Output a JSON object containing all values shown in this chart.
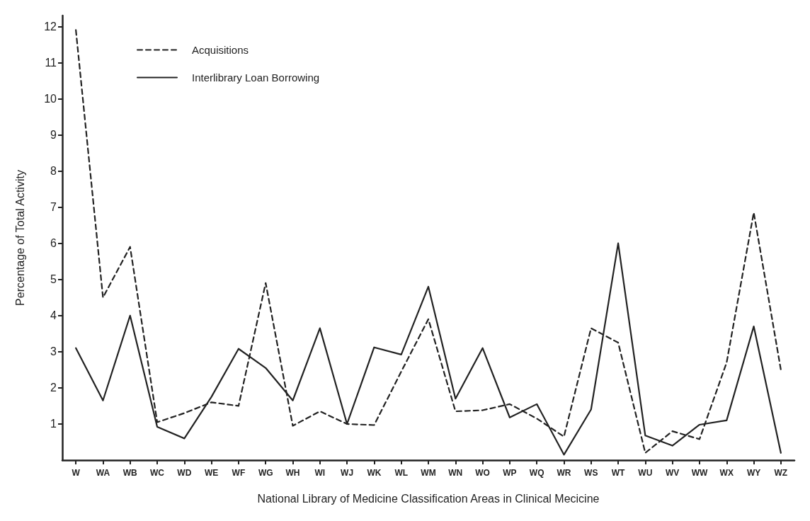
{
  "chart_data": {
    "type": "line",
    "xlabel": "National Library of Medicine Classification Areas in Clinical Mecicine",
    "ylabel": "Percentage of Total Activity",
    "categories": [
      "W",
      "WA",
      "WB",
      "WC",
      "WD",
      "WE",
      "WF",
      "WG",
      "WH",
      "WI",
      "WJ",
      "WK",
      "WL",
      "WM",
      "WN",
      "WO",
      "WP",
      "WQ",
      "WR",
      "WS",
      "WT",
      "WU",
      "WV",
      "WW",
      "WX",
      "WY",
      "WZ"
    ],
    "series": [
      {
        "name": "Acquisitions",
        "color": "#222222",
        "line_style": "dashed",
        "values": [
          11.9,
          4.5,
          5.9,
          1.05,
          1.3,
          1.6,
          1.5,
          4.9,
          0.95,
          1.35,
          1.0,
          0.97,
          2.45,
          3.9,
          1.35,
          1.38,
          1.55,
          1.15,
          0.65,
          3.65,
          3.25,
          0.2,
          0.8,
          0.58,
          2.7,
          6.85,
          2.5
        ]
      },
      {
        "name": "Interlibrary Loan Borrowing",
        "color": "#222222",
        "line_style": "solid",
        "values": [
          3.1,
          1.65,
          4.0,
          0.92,
          0.6,
          1.75,
          3.08,
          2.55,
          1.65,
          3.65,
          1.0,
          3.12,
          2.92,
          4.8,
          1.7,
          3.1,
          1.18,
          1.55,
          0.15,
          1.4,
          6.0,
          0.68,
          0.4,
          0.98,
          1.1,
          3.7,
          0.2
        ]
      }
    ],
    "ylim": [
      0,
      12.3
    ],
    "yticks": [
      1,
      2,
      3,
      4,
      5,
      6,
      7,
      8,
      9,
      10,
      11,
      12
    ],
    "grid": false,
    "legend": "top left",
    "marker": "none"
  }
}
